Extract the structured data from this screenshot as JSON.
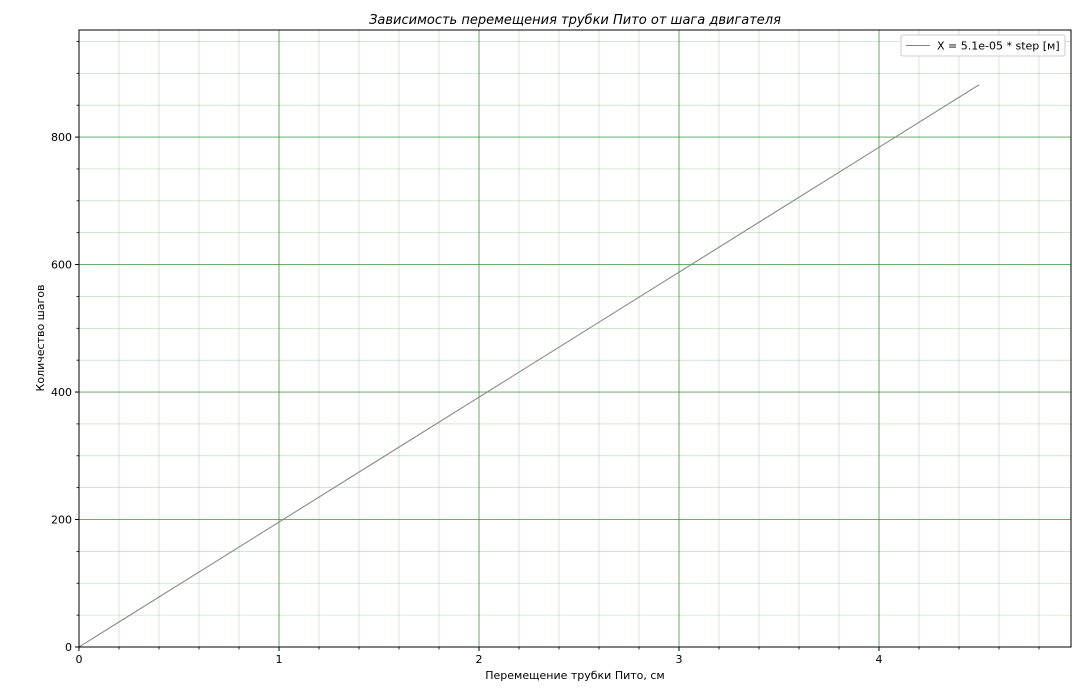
{
  "chart_data": {
    "type": "line",
    "title": "Зависимость перемещения трубки Пито от шага двигателя",
    "xlabel": "Перемещение трубки Пито, см",
    "ylabel": "Количество шагов",
    "xlim": [
      0,
      4.96
    ],
    "ylim": [
      0,
      968
    ],
    "x_ticks": [
      "0",
      "1",
      "2",
      "3",
      "4"
    ],
    "y_ticks": [
      "0",
      "200",
      "400",
      "600",
      "800"
    ],
    "x_minor_step": 0.2,
    "y_minor_step": 50,
    "grid": true,
    "grid_color": "#2e8b2e",
    "legend_position": "top-right",
    "series": [
      {
        "name": "X = 5.1e-05 * step [м]",
        "color": "#808080",
        "x": [
          0,
          4.5
        ],
        "y": [
          0,
          882
        ]
      }
    ]
  }
}
